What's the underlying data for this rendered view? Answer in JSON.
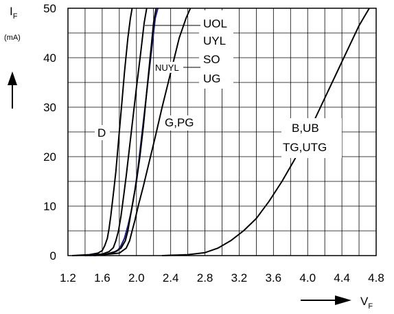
{
  "chart_data": {
    "type": "line",
    "y_label": {
      "main": "I",
      "sub": "F",
      "unit": "(mA)"
    },
    "x_label": {
      "main": "V",
      "sub": "F"
    },
    "xlim": [
      1.2,
      4.8
    ],
    "ylim": [
      0,
      50
    ],
    "x_ticks": [
      "1.2",
      "1.6",
      "2.0",
      "2.4",
      "2.8",
      "3.2",
      "3.6",
      "4.0",
      "4.4",
      "4.8"
    ],
    "y_ticks": [
      "0",
      "10",
      "20",
      "30",
      "40",
      "50"
    ],
    "grid": true,
    "colors": {
      "default": "#000000",
      "highlight": "#1a1a8c"
    },
    "series": [
      {
        "name": "D",
        "color": "#000000",
        "x": [
          1.25,
          1.45,
          1.55,
          1.6,
          1.63,
          1.66,
          1.68,
          1.7,
          1.72,
          1.74,
          1.76,
          1.78,
          1.8,
          1.83,
          1.86,
          1.9,
          1.93,
          1.95
        ],
        "y": [
          0,
          0.2,
          0.5,
          1,
          2,
          3.5,
          5.5,
          8,
          11,
          14,
          17,
          21,
          25,
          31,
          37,
          44,
          48,
          50
        ]
      },
      {
        "name": "UOL",
        "color": "#000000",
        "x": [
          1.4,
          1.6,
          1.68,
          1.73,
          1.76,
          1.79,
          1.82,
          1.85,
          1.88,
          1.92,
          1.96,
          2.0,
          2.05,
          2.09,
          2.12
        ],
        "y": [
          0,
          0.3,
          0.8,
          1.6,
          3,
          5,
          8,
          12,
          16,
          22,
          28,
          34,
          41,
          47,
          50
        ]
      },
      {
        "name": "NUYL",
        "color": "#1a1a8c",
        "x": [
          1.45,
          1.62,
          1.72,
          1.78,
          1.82,
          1.86,
          1.9,
          1.94,
          1.98,
          2.02,
          2.06,
          2.1,
          2.14,
          2.18,
          2.22,
          2.25
        ],
        "y": [
          0,
          0.2,
          0.5,
          1,
          2,
          3.5,
          6,
          9,
          13,
          18,
          24,
          30,
          36,
          42,
          48,
          50
        ]
      },
      {
        "name": "UYL",
        "color": "#000000",
        "x": [
          1.5,
          1.65,
          1.75,
          1.82,
          1.87,
          1.9,
          1.93,
          1.96,
          2.0,
          2.04,
          2.08,
          2.12,
          2.16,
          2.2,
          2.23
        ],
        "y": [
          0,
          0.3,
          0.8,
          1.5,
          3,
          5,
          8,
          11,
          15,
          20,
          26,
          33,
          40,
          47,
          50
        ]
      },
      {
        "name": "G,PG",
        "color": "#000000",
        "x": [
          1.5,
          1.8,
          1.88,
          1.92,
          1.95,
          1.98,
          2.02,
          2.08,
          2.15,
          2.22,
          2.3,
          2.4,
          2.5,
          2.58,
          2.63
        ],
        "y": [
          0,
          0.5,
          1.5,
          3,
          5,
          7,
          10,
          14,
          19,
          24,
          30,
          37,
          44,
          48,
          50
        ]
      },
      {
        "name": "B,UB",
        "color": "#000000",
        "x": [
          2.3,
          2.6,
          2.8,
          2.95,
          3.1,
          3.25,
          3.4,
          3.55,
          3.7,
          3.85,
          4.0,
          4.15,
          4.3,
          4.45,
          4.6,
          4.72
        ],
        "y": [
          0,
          0.2,
          0.6,
          1.5,
          3,
          5,
          7.5,
          11,
          15,
          19.5,
          24.5,
          30,
          35.5,
          41,
          46.5,
          50
        ]
      }
    ],
    "annotations": {
      "uol": "UOL",
      "uyl": "UYL",
      "so": "SO",
      "ug": "UG",
      "nuyl": "NUYL",
      "d": "D",
      "gpg": "G,PG",
      "bub": "B,UB",
      "tgutg": "TG,UTG"
    }
  }
}
